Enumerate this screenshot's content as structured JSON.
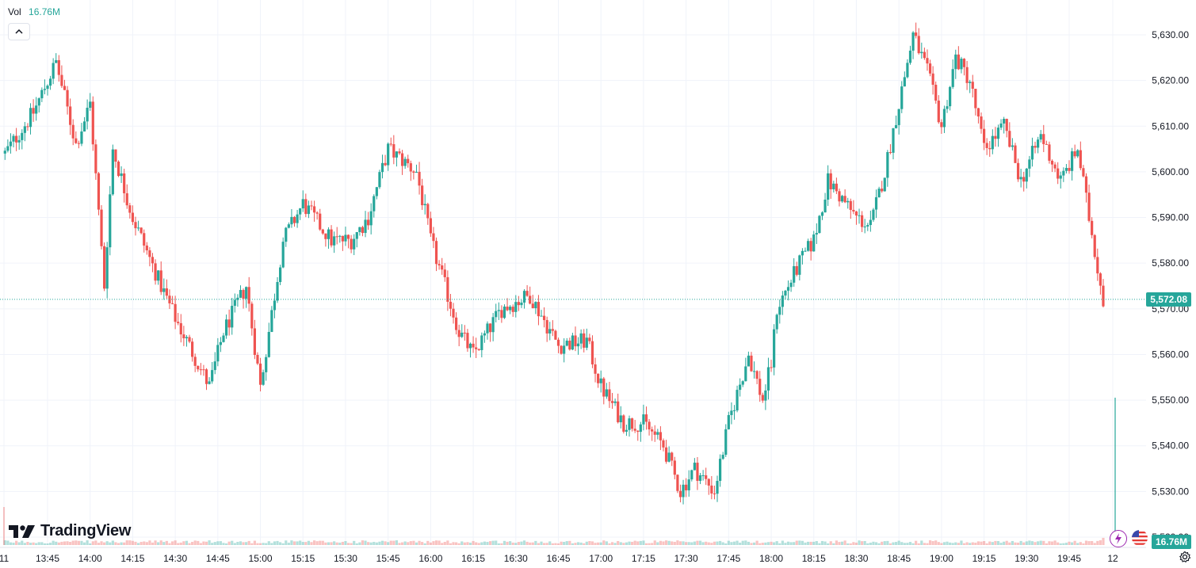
{
  "volume": {
    "label": "Vol",
    "value": "16.76M"
  },
  "last_price_tag": "5,572.08",
  "volume_tag": "16.76M",
  "logo": {
    "text": "TradingView"
  },
  "icons": {
    "collapse": "chevron-up-icon",
    "lightning": "lightning-icon",
    "flag": "us-flag-icon",
    "settings": "gear-icon"
  },
  "colors": {
    "up": "#26a69a",
    "down": "#ef5350",
    "grid": "#f0f3fa",
    "text": "#131722"
  },
  "chart_data": {
    "type": "candlestick",
    "x_start_label": "11",
    "x_end_label": "12",
    "x_ticks": [
      "13:45",
      "14:00",
      "14:15",
      "14:30",
      "14:45",
      "15:00",
      "15:15",
      "15:30",
      "15:45",
      "16:00",
      "16:15",
      "16:30",
      "16:45",
      "17:00",
      "17:15",
      "17:30",
      "17:45",
      "18:00",
      "18:15",
      "18:30",
      "18:45",
      "19:00",
      "19:15",
      "19:30",
      "19:45"
    ],
    "y_ticks": [
      5520,
      5530,
      5540,
      5550,
      5560,
      5570,
      5580,
      5590,
      5600,
      5610,
      5620,
      5630
    ],
    "y_tick_labels": [
      "5,520.00",
      "5,530.00",
      "5,540.00",
      "5,550.00",
      "5,560.00",
      "5,570.00",
      "5,580.00",
      "5,590.00",
      "5,600.00",
      "5,610.00",
      "5,620.00",
      "5,630.00"
    ],
    "ylim": [
      5516,
      5637
    ],
    "last_price": 5572.08,
    "key_closes": [
      {
        "t": "13:30",
        "close": 5604
      },
      {
        "t": "13:40",
        "close": 5613
      },
      {
        "t": "13:48",
        "close": 5624
      },
      {
        "t": "13:55",
        "close": 5606
      },
      {
        "t": "14:00",
        "close": 5615
      },
      {
        "t": "14:05",
        "close": 5575
      },
      {
        "t": "14:08",
        "close": 5605
      },
      {
        "t": "14:15",
        "close": 5590
      },
      {
        "t": "14:25",
        "close": 5575
      },
      {
        "t": "14:30",
        "close": 5568
      },
      {
        "t": "14:42",
        "close": 5553
      },
      {
        "t": "14:47",
        "close": 5565
      },
      {
        "t": "14:55",
        "close": 5575
      },
      {
        "t": "15:00",
        "close": 5553
      },
      {
        "t": "15:08",
        "close": 5585
      },
      {
        "t": "15:15",
        "close": 5593
      },
      {
        "t": "15:25",
        "close": 5585
      },
      {
        "t": "15:32",
        "close": 5585
      },
      {
        "t": "15:38",
        "close": 5590
      },
      {
        "t": "15:45",
        "close": 5605
      },
      {
        "t": "15:55",
        "close": 5600
      },
      {
        "t": "16:00",
        "close": 5585
      },
      {
        "t": "16:05",
        "close": 5575
      },
      {
        "t": "16:10",
        "close": 5565
      },
      {
        "t": "16:15",
        "close": 5560
      },
      {
        "t": "16:25",
        "close": 5570
      },
      {
        "t": "16:35",
        "close": 5573
      },
      {
        "t": "16:45",
        "close": 5562
      },
      {
        "t": "16:55",
        "close": 5563
      },
      {
        "t": "17:00",
        "close": 5553
      },
      {
        "t": "17:08",
        "close": 5545
      },
      {
        "t": "17:15",
        "close": 5545
      },
      {
        "t": "17:22",
        "close": 5540
      },
      {
        "t": "17:28",
        "close": 5530
      },
      {
        "t": "17:33",
        "close": 5535
      },
      {
        "t": "17:40",
        "close": 5530
      },
      {
        "t": "17:45",
        "close": 5545
      },
      {
        "t": "17:52",
        "close": 5560
      },
      {
        "t": "17:57",
        "close": 5550
      },
      {
        "t": "18:00",
        "close": 5558
      },
      {
        "t": "18:02",
        "close": 5570
      },
      {
        "t": "18:10",
        "close": 5580
      },
      {
        "t": "18:15",
        "close": 5585
      },
      {
        "t": "18:20",
        "close": 5598
      },
      {
        "t": "18:30",
        "close": 5590
      },
      {
        "t": "18:35",
        "close": 5588
      },
      {
        "t": "18:40",
        "close": 5600
      },
      {
        "t": "18:45",
        "close": 5615
      },
      {
        "t": "18:50",
        "close": 5630
      },
      {
        "t": "18:55",
        "close": 5622
      },
      {
        "t": "19:00",
        "close": 5610
      },
      {
        "t": "19:05",
        "close": 5625
      },
      {
        "t": "19:10",
        "close": 5620
      },
      {
        "t": "19:15",
        "close": 5605
      },
      {
        "t": "19:22",
        "close": 5610
      },
      {
        "t": "19:28",
        "close": 5598
      },
      {
        "t": "19:35",
        "close": 5608
      },
      {
        "t": "19:42",
        "close": 5598
      },
      {
        "t": "19:48",
        "close": 5605
      },
      {
        "t": "19:52",
        "close": 5590
      },
      {
        "t": "19:57",
        "close": 5572
      }
    ]
  }
}
